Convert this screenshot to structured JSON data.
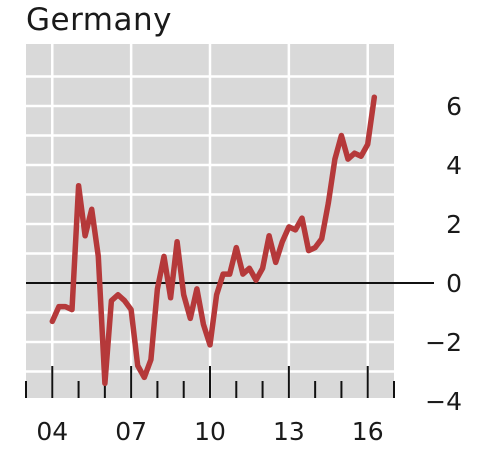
{
  "chart_data": {
    "type": "line",
    "title": "Germany",
    "xlabel": "",
    "ylabel": "",
    "x_start_year": 2003,
    "xlim": [
      2003.0,
      2017.0
    ],
    "ylim": [
      -4.5,
      7.5
    ],
    "y_ticks": [
      -4,
      -2,
      0,
      2,
      4,
      6
    ],
    "y_tick_labels": [
      "−4",
      "−2",
      "0",
      "2",
      "4",
      "6"
    ],
    "x_tick_positions": [
      2004,
      2007,
      2010,
      2013,
      2016
    ],
    "x_tick_labels": [
      "04",
      "07",
      "10",
      "13",
      "16"
    ],
    "grid": true,
    "line_color": "#b5393a",
    "background_color": "#d9d9d9",
    "series": [
      {
        "x": [
          2004.0,
          2004.25,
          2004.5,
          2004.75,
          2005.0,
          2005.25,
          2005.5,
          2005.75,
          2006.0,
          2006.25,
          2006.5,
          2006.75,
          2007.0,
          2007.25,
          2007.5,
          2007.75,
          2008.0,
          2008.25,
          2008.5,
          2008.75,
          2009.0,
          2009.25,
          2009.5,
          2009.75,
          2010.0,
          2010.25,
          2010.5,
          2010.75,
          2011.0,
          2011.25,
          2011.5,
          2011.75,
          2012.0,
          2012.25,
          2012.5,
          2012.75,
          2013.0,
          2013.25,
          2013.5,
          2013.75,
          2014.0,
          2014.25,
          2014.5,
          2014.75,
          2015.0,
          2015.25,
          2015.5,
          2015.75,
          2016.0,
          2016.25
        ],
        "y": [
          -1.3,
          -0.8,
          -0.8,
          -0.9,
          3.3,
          1.6,
          2.5,
          0.9,
          -3.4,
          -0.6,
          -0.4,
          -0.6,
          -0.9,
          -2.8,
          -3.2,
          -2.6,
          -0.2,
          0.9,
          -0.5,
          1.4,
          -0.4,
          -1.2,
          -0.2,
          -1.4,
          -2.1,
          -0.4,
          0.3,
          0.3,
          1.2,
          0.3,
          0.5,
          0.1,
          0.5,
          1.6,
          0.7,
          1.4,
          1.9,
          1.8,
          2.2,
          1.1,
          1.2,
          1.5,
          2.7,
          4.2,
          5.0,
          4.2,
          4.4,
          4.3,
          4.7,
          6.3
        ]
      }
    ]
  }
}
